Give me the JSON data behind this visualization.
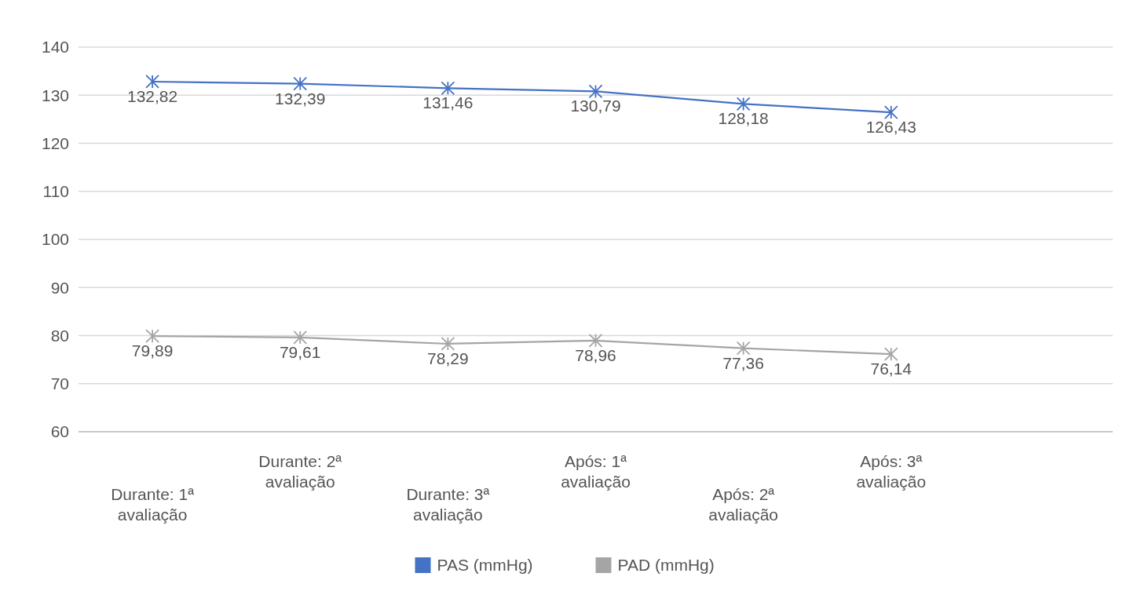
{
  "chart_data": {
    "type": "line",
    "categories": [
      "Durante: 1ª avaliação",
      "Durante: 2ª avaliação",
      "Durante: 3ª avaliação",
      "Após: 1ª avaliação",
      "Após: 2ª avaliação",
      "Após: 3ª avaliação",
      null
    ],
    "series": [
      {
        "name": "PAS (mmHg)",
        "color": "#4472c4",
        "values": [
          132.82,
          132.39,
          131.46,
          130.79,
          128.18,
          126.43,
          null
        ],
        "value_labels": [
          "132,82",
          "132,39",
          "131,46",
          "130,79",
          "128,18",
          "126,43",
          null
        ]
      },
      {
        "name": "PAD (mmHg)",
        "color": "#a5a5a5",
        "values": [
          79.89,
          79.61,
          78.29,
          78.96,
          77.36,
          76.14,
          null
        ],
        "value_labels": [
          "79,89",
          "79,61",
          "78,29",
          "78,96",
          "77,36",
          "76,14",
          null
        ]
      }
    ],
    "ylim": [
      60,
      140
    ],
    "yticks": [
      60,
      70,
      80,
      90,
      100,
      110,
      120,
      130,
      140
    ],
    "grid": "y",
    "legend": "bottom",
    "marker": "cross",
    "line_style": "solid"
  }
}
